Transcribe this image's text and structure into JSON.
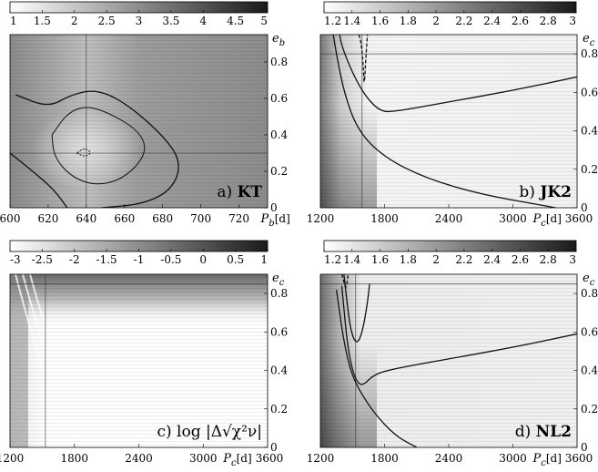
{
  "chart_data": [
    {
      "type": "heatmap",
      "panel_label": "a)",
      "panel_name": "KT",
      "colorbar": {
        "ticks": [
          "1",
          "1.5",
          "2",
          "2.5",
          "3",
          "3.5",
          "4",
          "4.5",
          "5"
        ],
        "range": [
          1,
          5
        ]
      },
      "x_axis": {
        "var": "P",
        "sub": "b",
        "unit": "[d]",
        "ticks": [
          "600",
          "620",
          "640",
          "660",
          "680",
          "700",
          "720"
        ],
        "range": [
          600,
          735
        ]
      },
      "y_axis": {
        "var": "e",
        "sub": "b",
        "ticks": [
          "0",
          "0.2",
          "0.4",
          "0.6",
          "0.8"
        ],
        "range": [
          0,
          0.95
        ]
      },
      "crosshair": {
        "x": 640,
        "y": 0.3
      },
      "best_fit": {
        "x": 639,
        "y": 0.31
      },
      "contours": [
        {
          "level": "inner",
          "points": [
            [
              635,
              0.3
            ],
            [
              639,
              0.28
            ],
            [
              643,
              0.3
            ],
            [
              639,
              0.33
            ],
            [
              635,
              0.3
            ]
          ]
        },
        {
          "level": "middle",
          "points": [
            [
              622,
              0.4
            ],
            [
              630,
              0.52
            ],
            [
              640,
              0.56
            ],
            [
              652,
              0.52
            ],
            [
              668,
              0.42
            ],
            [
              672,
              0.3
            ],
            [
              660,
              0.16
            ],
            [
              645,
              0.12
            ],
            [
              632,
              0.17
            ],
            [
              623,
              0.28
            ],
            [
              622,
              0.4
            ]
          ]
        },
        {
          "level": "outer",
          "points": [
            [
              603,
              0.62
            ],
            [
              620,
              0.55
            ],
            [
              632,
              0.62
            ],
            [
              645,
              0.65
            ],
            [
              660,
              0.58
            ],
            [
              680,
              0.4
            ],
            [
              690,
              0.25
            ],
            [
              685,
              0.1
            ],
            [
              670,
              0.02
            ],
            [
              648,
              0.0
            ]
          ]
        },
        {
          "level": "outer-left",
          "points": [
            [
              600,
              0.3
            ],
            [
              612,
              0.2
            ],
            [
              623,
              0.1
            ],
            [
              630,
              0.0
            ]
          ]
        }
      ]
    },
    {
      "type": "heatmap",
      "panel_label": "b)",
      "panel_name": "JK2",
      "colorbar": {
        "ticks": [
          "1.2",
          "1.4",
          "1.6",
          "1.8",
          "2",
          "2.2",
          "2.4",
          "2.6",
          "2.8",
          "3"
        ],
        "range": [
          1.2,
          3
        ]
      },
      "x_axis": {
        "var": "P",
        "sub": "c",
        "unit": "[d]",
        "ticks": [
          "1200",
          "1800",
          "2400",
          "3000"
        ],
        "end_tick": "3600",
        "range": [
          1200,
          3600
        ]
      },
      "y_axis": {
        "var": "e",
        "sub": "c",
        "ticks": [
          "0",
          "0.2",
          "0.4",
          "0.6",
          "0.8"
        ],
        "range": [
          0,
          0.9
        ]
      },
      "crosshair": {
        "x": 1590,
        "y": 0.8
      },
      "contours": [
        {
          "level": "dashed",
          "points": [
            [
              1560,
              0.9
            ],
            [
              1580,
              0.86
            ],
            [
              1600,
              0.75
            ],
            [
              1610,
              0.62
            ],
            [
              1625,
              0.78
            ],
            [
              1640,
              0.9
            ]
          ]
        },
        {
          "level": "lower",
          "points": [
            [
              1320,
              0.9
            ],
            [
              1350,
              0.8
            ],
            [
              1420,
              0.6
            ],
            [
              1550,
              0.4
            ],
            [
              1800,
              0.26
            ],
            [
              2200,
              0.15
            ],
            [
              2700,
              0.07
            ],
            [
              3200,
              0.02
            ],
            [
              3400,
              0.0
            ]
          ]
        },
        {
          "level": "upper",
          "points": [
            [
              1380,
              0.9
            ],
            [
              1400,
              0.84
            ],
            [
              1500,
              0.7
            ],
            [
              1620,
              0.58
            ],
            [
              1760,
              0.5
            ],
            [
              1900,
              0.5
            ],
            [
              2400,
              0.55
            ],
            [
              3000,
              0.61
            ],
            [
              3600,
              0.68
            ]
          ]
        }
      ]
    },
    {
      "type": "heatmap",
      "panel_label": "c)",
      "panel_name": "log |Δ√χ²ν|",
      "colorbar": {
        "ticks": [
          "-3",
          "-2.5",
          "-2",
          "-1.5",
          "-1",
          "-0.5",
          "0",
          "0.5",
          "1"
        ],
        "range": [
          -3,
          1
        ]
      },
      "x_axis": {
        "var": "P",
        "sub": "c",
        "unit": "[d]",
        "ticks": [
          "1200",
          "1800",
          "2400",
          "3000"
        ],
        "end_tick": "3600",
        "range": [
          1200,
          3600
        ]
      },
      "y_axis": {
        "var": "e",
        "sub": "c",
        "ticks": [
          "0",
          "0.2",
          "0.4",
          "0.6",
          "0.8"
        ],
        "range": [
          0,
          0.9
        ]
      },
      "crosshair": {
        "x": 1530,
        "y": 0.85
      }
    },
    {
      "type": "heatmap",
      "panel_label": "d)",
      "panel_name": "NL2",
      "colorbar": {
        "ticks": [
          "1.2",
          "1.4",
          "1.6",
          "1.8",
          "2",
          "2.2",
          "2.4",
          "2.6",
          "2.8",
          "3"
        ],
        "range": [
          1.2,
          3
        ]
      },
      "x_axis": {
        "var": "P",
        "sub": "c",
        "unit": "[d]",
        "ticks": [
          "1200",
          "1800",
          "2400",
          "3000"
        ],
        "end_tick": "3600",
        "range": [
          1200,
          3600
        ]
      },
      "y_axis": {
        "var": "e",
        "sub": "c",
        "ticks": [
          "0",
          "0.2",
          "0.4",
          "0.6",
          "0.8"
        ],
        "range": [
          0,
          0.9
        ]
      },
      "crosshair": {
        "x": 1530,
        "y": 0.85
      },
      "contours": [
        {
          "level": "dashed",
          "points": [
            [
              1400,
              0.9
            ],
            [
              1420,
              0.86
            ],
            [
              1440,
              0.82
            ],
            [
              1460,
              0.9
            ]
          ]
        },
        {
          "level": "lower",
          "points": [
            [
              1350,
              0.82
            ],
            [
              1380,
              0.7
            ],
            [
              1420,
              0.55
            ],
            [
              1480,
              0.4
            ],
            [
              1560,
              0.3
            ],
            [
              1700,
              0.18
            ],
            [
              1900,
              0.06
            ],
            [
              2100,
              0.0
            ]
          ]
        },
        {
          "level": "upper",
          "points": [
            [
              1400,
              0.84
            ],
            [
              1420,
              0.72
            ],
            [
              1450,
              0.55
            ],
            [
              1490,
              0.42
            ],
            [
              1540,
              0.34
            ],
            [
              1600,
              0.32
            ],
            [
              1700,
              0.38
            ],
            [
              1900,
              0.41
            ],
            [
              2400,
              0.46
            ],
            [
              3000,
              0.52
            ],
            [
              3600,
              0.59
            ]
          ]
        },
        {
          "level": "mid",
          "points": [
            [
              1420,
              0.9
            ],
            [
              1450,
              0.75
            ],
            [
              1480,
              0.62
            ],
            [
              1520,
              0.55
            ],
            [
              1560,
              0.55
            ],
            [
              1600,
              0.62
            ],
            [
              1640,
              0.75
            ],
            [
              1660,
              0.85
            ]
          ]
        }
      ]
    }
  ]
}
